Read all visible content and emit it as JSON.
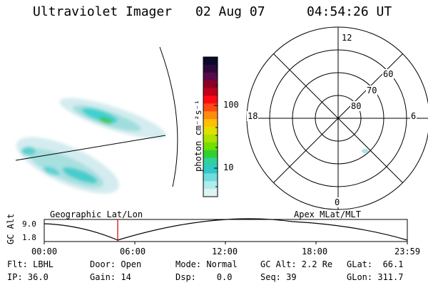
{
  "header": {
    "instrument": "Ultraviolet Imager",
    "date": "02 Aug 07",
    "time": "04:54:26 UT"
  },
  "colorbar": {
    "unit_label": "photon cm⁻²s⁻¹",
    "ticks": [
      "100",
      "10"
    ],
    "colors": [
      "#0a0a28",
      "#2a0a3a",
      "#5a0a4a",
      "#8a0028",
      "#c00018",
      "#ff0a14",
      "#ff4a10",
      "#ff8a10",
      "#ffc000",
      "#e0e000",
      "#b0e000",
      "#70e000",
      "#30d030",
      "#30d0a0",
      "#30c8c8",
      "#70dcdc",
      "#b0ecec",
      "#dcf4f4"
    ]
  },
  "polar_plot": {
    "mlt_labels": {
      "top": "12",
      "bottom": "0",
      "left": "18",
      "right": "6"
    },
    "lat_labels": [
      "60",
      "70",
      "80"
    ]
  },
  "timeline": {
    "left_title": "Geographic Lat/Lon",
    "right_title": "Apex MLat/MLT",
    "axis_title": "GC Alt",
    "y_ticks": [
      "9.0",
      "1.8"
    ],
    "x_ticks": [
      "00:00",
      "06:00",
      "12:00",
      "18:00",
      "23:59"
    ]
  },
  "footer": {
    "row1": {
      "filter": "Flt: LBHL",
      "door": "Door: Open",
      "mode": "Mode: Normal",
      "gc_alt": "GC Alt: 2.2 Re",
      "glat": "GLat:  66.1"
    },
    "row2": {
      "ip": "IP: 36.0",
      "gain": "Gain: 14",
      "dsp": "Dsp:    0.0",
      "seq": "Seq: 39",
      "glon": "GLon: 311.7"
    }
  },
  "colors": {
    "marker": "#cc0000",
    "aurora_low": "#c8e8ec",
    "aurora_mid": "#40d0d0",
    "aurora_high": "#30c040"
  }
}
